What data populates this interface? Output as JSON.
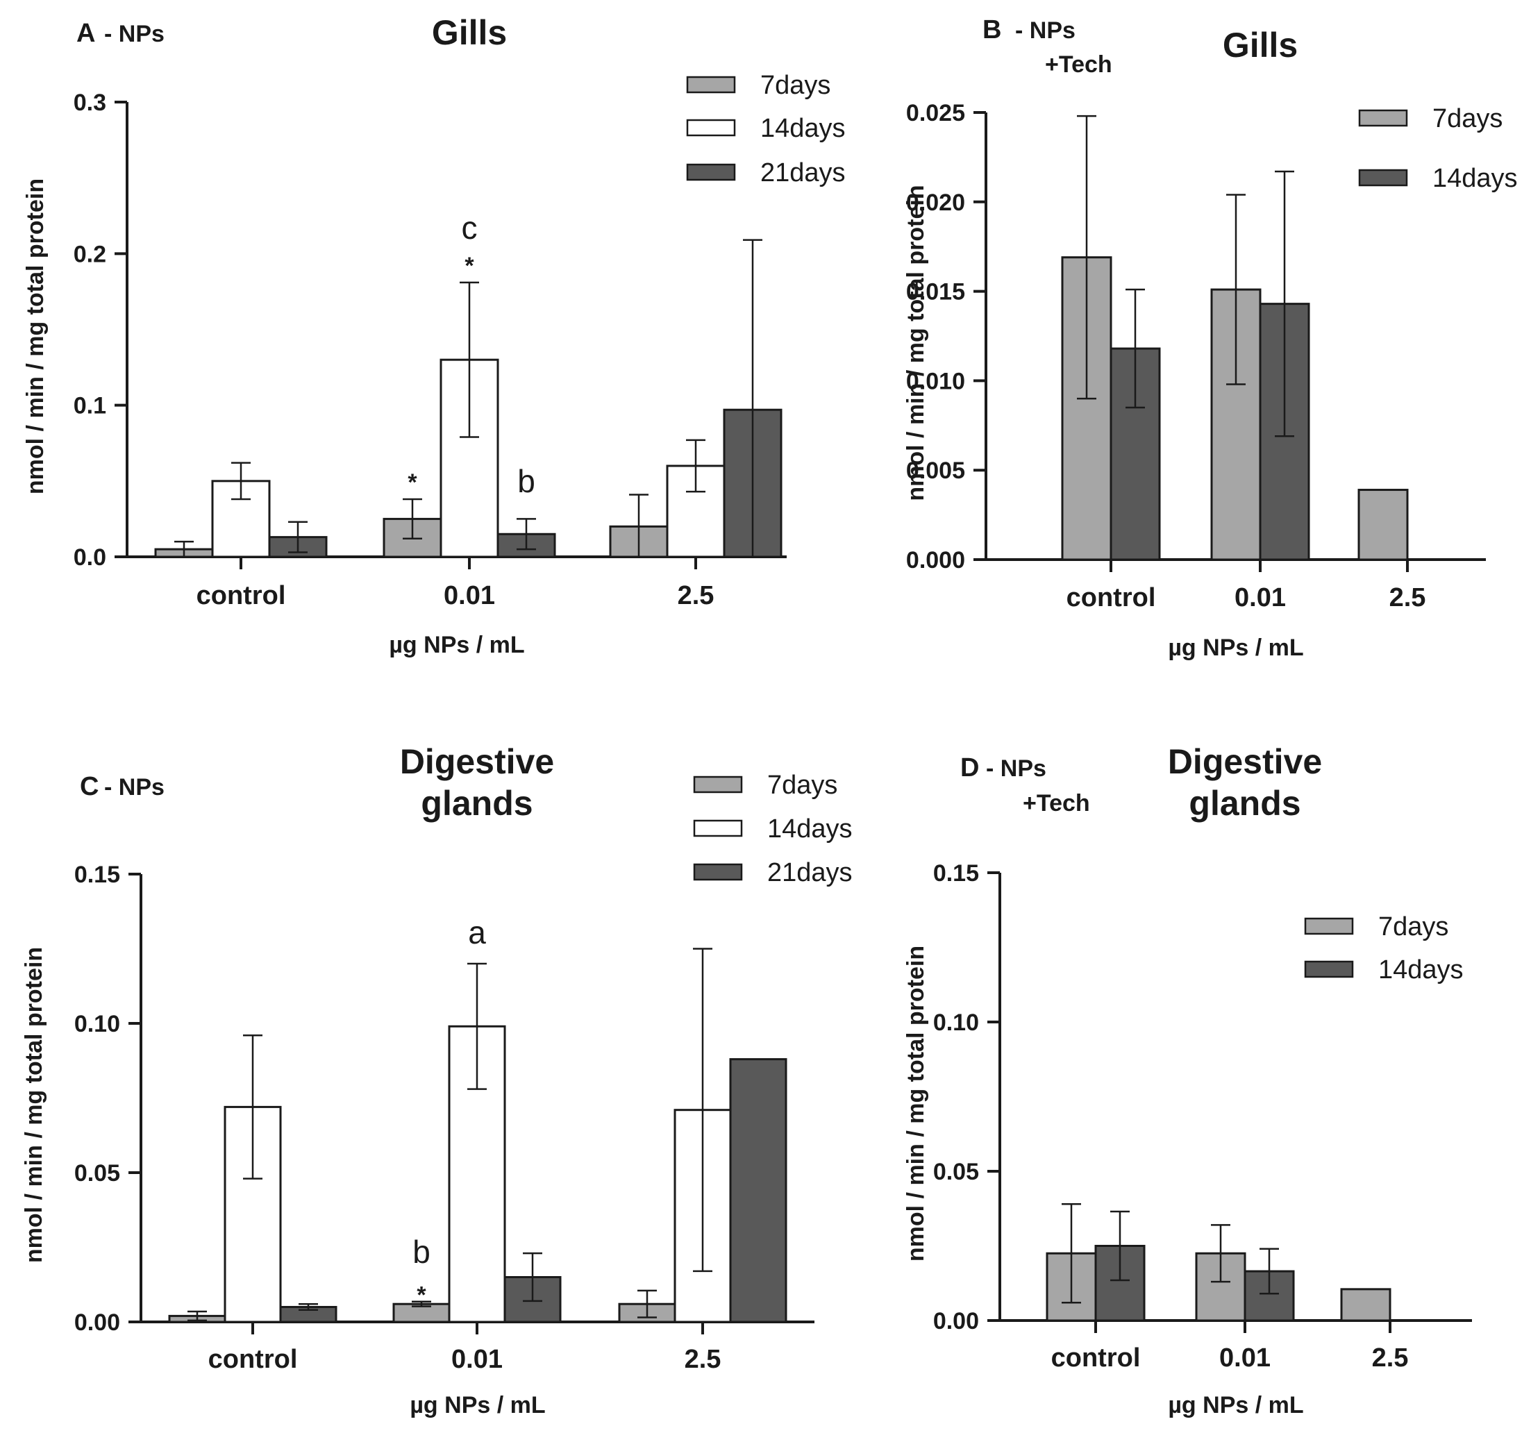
{
  "colors": {
    "7days": "#a6a6a6",
    "14days": "#ffffff",
    "21days": "#595959",
    "axis": "#1a1a1a"
  },
  "chart_data": [
    {
      "id": "A",
      "type": "bar",
      "panel_letter": "A",
      "panel_sub": "- NPs",
      "title": [
        "Gills"
      ],
      "xlabel": "µg NPs / mL",
      "ylabel": "nmol / min / mg total protein",
      "ylim": [
        0,
        0.3
      ],
      "yticks": [
        "0.0",
        "0.1",
        "0.2",
        "0.3"
      ],
      "categories": [
        "control",
        "0.01",
        "2.5"
      ],
      "series": [
        {
          "name": "7days",
          "color": "#a6a6a6",
          "values": [
            0.005,
            0.025,
            0.02
          ],
          "errors": [
            0.005,
            0.013,
            0.021
          ]
        },
        {
          "name": "14days",
          "color": "#ffffff",
          "values": [
            0.05,
            0.13,
            0.06
          ],
          "errors": [
            0.012,
            0.051,
            0.017
          ]
        },
        {
          "name": "21days",
          "color": "#595959",
          "values": [
            0.013,
            0.015,
            0.097
          ],
          "errors": [
            0.01,
            0.01,
            0.112
          ]
        }
      ],
      "annotations": [
        {
          "text": "*",
          "cat": 1,
          "series": 0,
          "y": 0.054,
          "kind": "star"
        },
        {
          "text": "*",
          "cat": 1,
          "series": 1,
          "y": 0.197,
          "kind": "star"
        },
        {
          "text": "c",
          "cat": 1,
          "series": 1,
          "y": 0.217,
          "kind": "letter"
        },
        {
          "text": "b",
          "cat": 1,
          "series": 2,
          "y": 0.05,
          "kind": "letter"
        }
      ]
    },
    {
      "id": "B",
      "type": "bar",
      "panel_letter": "B",
      "panel_sub": "- NPs",
      "panel_sub2": "+Tech",
      "title": [
        "Gills"
      ],
      "xlabel": "µg NPs / mL",
      "ylabel": "nmol / min / mg total protein",
      "ylim": [
        0,
        0.025
      ],
      "yticks": [
        "0.000",
        "0.005",
        "0.010",
        "0.015",
        "0.020",
        "0.025"
      ],
      "categories": [
        "control",
        "0.01",
        "2.5"
      ],
      "series": [
        {
          "name": "7days",
          "color": "#a6a6a6",
          "values": [
            0.0169,
            0.0151,
            0.0039
          ],
          "errors": [
            0.0079,
            0.0053,
            null
          ]
        },
        {
          "name": "14days",
          "color": "#595959",
          "values": [
            0.0118,
            0.0143,
            null
          ],
          "errors": [
            0.0033,
            0.0074,
            null
          ]
        }
      ],
      "annotations": []
    },
    {
      "id": "C",
      "type": "bar",
      "panel_letter": "C",
      "panel_sub": "- NPs",
      "title": [
        "Digestive",
        "glands"
      ],
      "xlabel": "µg NPs / mL",
      "ylabel": "nmol / min / mg total protein",
      "ylim": [
        0,
        0.15
      ],
      "yticks": [
        "0.00",
        "0.05",
        "0.10",
        "0.15"
      ],
      "categories": [
        "control",
        "0.01",
        "2.5"
      ],
      "series": [
        {
          "name": "7days",
          "color": "#a6a6a6",
          "values": [
            0.002,
            0.006,
            0.006
          ],
          "errors": [
            0.0015,
            0.0008,
            0.0045
          ]
        },
        {
          "name": "14days",
          "color": "#ffffff",
          "values": [
            0.072,
            0.099,
            0.071
          ],
          "errors": [
            0.024,
            0.021,
            0.054
          ]
        },
        {
          "name": "21days",
          "color": "#595959",
          "values": [
            0.005,
            0.015,
            0.088
          ],
          "errors": [
            0.001,
            0.008,
            null
          ]
        }
      ],
      "annotations": [
        {
          "text": "*",
          "cat": 1,
          "series": 0,
          "y": 0.0115,
          "kind": "star"
        },
        {
          "text": "b",
          "cat": 1,
          "series": 0,
          "y": 0.0235,
          "kind": "letter"
        },
        {
          "text": "a",
          "cat": 1,
          "series": 1,
          "y": 0.1305,
          "kind": "letter"
        }
      ]
    },
    {
      "id": "D",
      "type": "bar",
      "panel_letter": "D",
      "panel_sub": "- NPs",
      "panel_sub2": "+Tech",
      "title": [
        "Digestive",
        "glands"
      ],
      "xlabel": "µg NPs / mL",
      "ylabel": "nmol / min / mg total protein",
      "ylim": [
        0,
        0.15
      ],
      "yticks": [
        "0.00",
        "0.05",
        "0.10",
        "0.15"
      ],
      "categories": [
        "control",
        "0.01",
        "2.5"
      ],
      "series": [
        {
          "name": "7days",
          "color": "#a6a6a6",
          "values": [
            0.0225,
            0.0225,
            0.0105
          ],
          "errors": [
            0.0165,
            0.0095,
            null
          ]
        },
        {
          "name": "14days",
          "color": "#595959",
          "values": [
            0.025,
            0.0165,
            null
          ],
          "errors": [
            0.0115,
            0.0075,
            null
          ]
        }
      ],
      "annotations": []
    }
  ]
}
